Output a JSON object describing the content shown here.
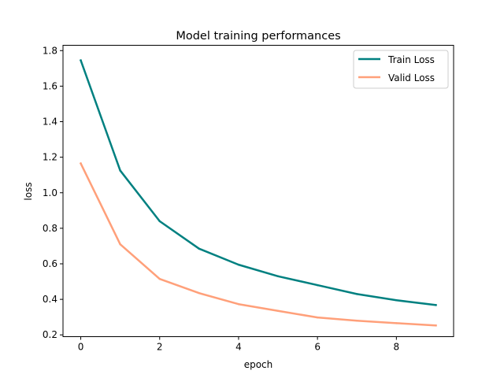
{
  "chart_data": {
    "type": "line",
    "title": "Model training performances",
    "xlabel": "epoch",
    "ylabel": "loss",
    "xlim": [
      -0.45,
      9.45
    ],
    "ylim": [
      0.19,
      1.83
    ],
    "x_ticks": [
      0,
      2,
      4,
      6,
      8
    ],
    "x_tick_labels": [
      "0",
      "2",
      "4",
      "6",
      "8"
    ],
    "y_ticks": [
      0.2,
      0.4,
      0.6,
      0.8,
      1.0,
      1.2,
      1.4,
      1.6,
      1.8
    ],
    "y_tick_labels": [
      "0.2",
      "0.4",
      "0.6",
      "0.8",
      "1.0",
      "1.2",
      "1.4",
      "1.6",
      "1.8"
    ],
    "grid": false,
    "legend_position": "top-right",
    "x": [
      0,
      1,
      2,
      3,
      4,
      5,
      6,
      7,
      8,
      9
    ],
    "series": [
      {
        "name": "Train Loss",
        "color": "#008080",
        "values": [
          1.745,
          1.125,
          0.84,
          0.685,
          0.595,
          0.53,
          0.48,
          0.43,
          0.395,
          0.368
        ]
      },
      {
        "name": "Valid Loss",
        "color": "#FFA07A",
        "values": [
          1.165,
          0.71,
          0.515,
          0.435,
          0.373,
          0.335,
          0.298,
          0.28,
          0.266,
          0.253
        ]
      }
    ]
  }
}
